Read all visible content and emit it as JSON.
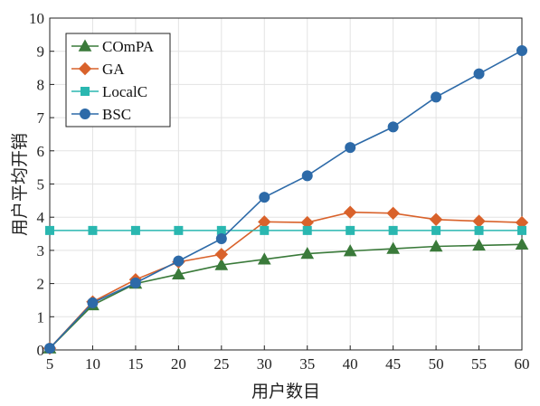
{
  "chart_data": {
    "type": "line",
    "title": "",
    "xlabel": "用户数目",
    "ylabel": "用户平均开销",
    "xlim": [
      5,
      60
    ],
    "ylim": [
      0,
      10
    ],
    "x_ticks": [
      5,
      10,
      15,
      20,
      25,
      30,
      35,
      40,
      45,
      50,
      55,
      60
    ],
    "y_ticks": [
      0,
      1,
      2,
      3,
      4,
      5,
      6,
      7,
      8,
      9,
      10
    ],
    "grid": true,
    "legend_position": "top-left",
    "x": [
      5,
      10,
      15,
      20,
      25,
      30,
      35,
      40,
      45,
      50,
      55,
      60
    ],
    "series": [
      {
        "name": "COmPA",
        "color": "#3a7a3a",
        "marker": "triangle",
        "values": [
          0.05,
          1.35,
          2.0,
          2.28,
          2.56,
          2.73,
          2.9,
          2.98,
          3.05,
          3.12,
          3.15,
          3.18
        ]
      },
      {
        "name": "GA",
        "color": "#d9622b",
        "marker": "diamond",
        "values": [
          0.05,
          1.45,
          2.12,
          2.65,
          2.88,
          3.86,
          3.84,
          4.15,
          4.12,
          3.93,
          3.88,
          3.84
        ]
      },
      {
        "name": "LocalC",
        "color": "#2ab7b0",
        "marker": "square",
        "values": [
          3.6,
          3.6,
          3.6,
          3.6,
          3.6,
          3.6,
          3.6,
          3.6,
          3.6,
          3.6,
          3.6,
          3.6
        ]
      },
      {
        "name": "BSC",
        "color": "#2d6aa8",
        "marker": "circle",
        "values": [
          0.05,
          1.42,
          2.02,
          2.68,
          3.35,
          4.6,
          5.25,
          6.1,
          6.72,
          7.62,
          8.32,
          9.02
        ]
      }
    ]
  }
}
